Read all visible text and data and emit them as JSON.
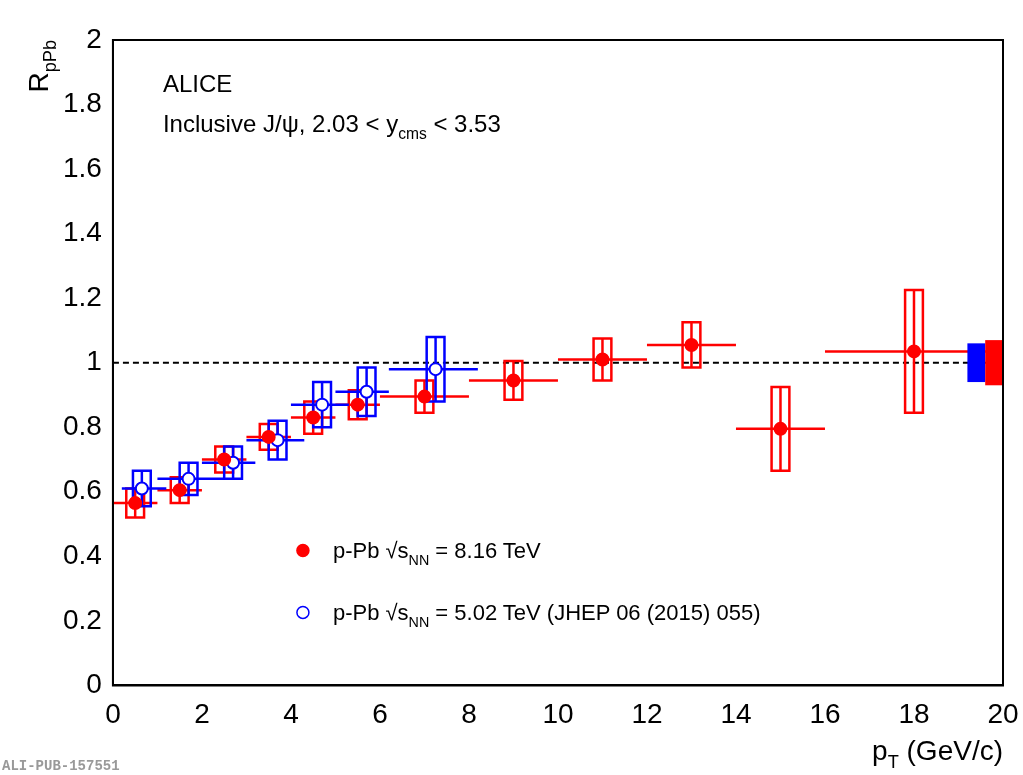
{
  "chart_data": {
    "type": "scatter",
    "xlabel": "p$_{T}$ (GeV/c)",
    "ylabel": "R$_{pPb}$",
    "xlim": [
      0,
      20
    ],
    "xticks": [
      0,
      2,
      4,
      6,
      8,
      10,
      12,
      14,
      16,
      18,
      20
    ],
    "ylim": [
      0,
      2
    ],
    "yticks": [
      0,
      0.2,
      0.4,
      0.6,
      0.8,
      1,
      1.2,
      1.4,
      1.6,
      1.8,
      2
    ],
    "grid": false,
    "legend": "bottom",
    "marker": "circle",
    "ref_lines": [
      {
        "axis": "y",
        "value": 1,
        "line_style": "dashed",
        "color": "#000000"
      }
    ],
    "annotations": [
      "ALICE",
      "Inclusive J/ψ, 2.03 < y$_{cms}$ < 3.53",
      "ALI-PUB-157551"
    ],
    "series": [
      {
        "name": "p-Pb √s$_{NN}$ = 8.16 TeV",
        "color": "#ff0000",
        "x": [
          0.5,
          1.5,
          2.5,
          3.5,
          4.5,
          5.5,
          7,
          9,
          11,
          13,
          15,
          18
        ],
        "values": [
          0.565,
          0.605,
          0.7,
          0.77,
          0.83,
          0.87,
          0.895,
          0.945,
          1.01,
          1.055,
          0.795,
          1.035
        ],
        "errors": [
          0.045,
          0.04,
          0.04,
          0.04,
          0.05,
          0.045,
          0.05,
          0.06,
          0.065,
          0.07,
          0.13,
          0.19
        ],
        "xerrors": [
          [
            0,
            1
          ],
          [
            1,
            2
          ],
          [
            2,
            3
          ],
          [
            3,
            4
          ],
          [
            4,
            5
          ],
          [
            5,
            6
          ],
          [
            6,
            8
          ],
          [
            8,
            10
          ],
          [
            10,
            12
          ],
          [
            12,
            14
          ],
          [
            14,
            16
          ],
          [
            16,
            20
          ]
        ]
      },
      {
        "name": "p-Pb √s$_{NN}$ = 5.02 TeV (JHEP 06 (2015) 055)",
        "color": "#0000ff",
        "x": [
          0.65,
          1.7,
          2.7,
          3.7,
          4.7,
          5.7,
          7.25
        ],
        "values": [
          0.61,
          0.64,
          0.69,
          0.76,
          0.87,
          0.91,
          0.98
        ],
        "errors": [
          0.055,
          0.05,
          0.05,
          0.06,
          0.07,
          0.075,
          0.1
        ],
        "xerrors": [
          [
            0.2,
            1.2
          ],
          [
            1,
            2.5
          ],
          [
            2,
            3.2
          ],
          [
            3,
            4.3
          ],
          [
            4,
            5.3
          ],
          [
            5,
            6.2
          ],
          [
            6.2,
            8.2
          ]
        ]
      },
      {
        "type": "bar",
        "color": "#0000ff",
        "x": [
          19.4
        ],
        "base": [
          0.94
        ],
        "values": [
          0.12
        ]
      },
      {
        "type": "bar",
        "color": "#ff0000",
        "x": [
          19.8
        ],
        "base": [
          0.93
        ],
        "values": [
          0.14
        ]
      }
    ]
  }
}
